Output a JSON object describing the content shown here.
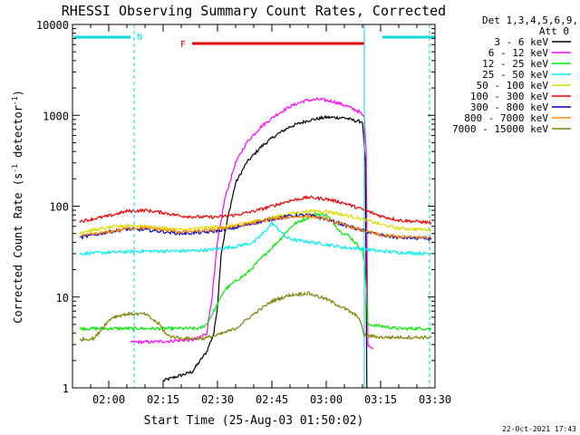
{
  "chart_data": {
    "type": "line",
    "title": "RHESSI Observing Summary Count Rates, Corrected",
    "xlabel": "Start Time (25-Aug-03 01:50:02)",
    "ylabel_main": "Corrected Count Rate (s",
    "ylabel_sup1": "-1",
    "ylabel_mid": " detector",
    "ylabel_sup2": "-1",
    "ylabel_end": ")",
    "yscale": "log",
    "ylim": [
      1,
      10000
    ],
    "xlim_min": [
      110,
      210
    ],
    "yticks": [
      {
        "v": 1,
        "label": "1"
      },
      {
        "v": 10,
        "label": "10"
      },
      {
        "v": 100,
        "label": "100"
      },
      {
        "v": 1000,
        "label": "1000"
      },
      {
        "v": 10000,
        "label": "10000"
      }
    ],
    "xticks": [
      {
        "t": 120,
        "label": "02:00"
      },
      {
        "t": 135,
        "label": "02:15"
      },
      {
        "t": 150,
        "label": "02:30"
      },
      {
        "t": 165,
        "label": "02:45"
      },
      {
        "t": 180,
        "label": "03:00"
      },
      {
        "t": 195,
        "label": "03:15"
      },
      {
        "t": 210,
        "label": "03:30"
      }
    ],
    "legend_header": [
      "Det 1,3,4,5,6,9,",
      "Att 0"
    ],
    "series": [
      {
        "name": "3 - 6 keV",
        "color": "#000000",
        "points": [
          [
            135,
            1.2
          ],
          [
            143,
            1.5
          ],
          [
            147,
            2.5
          ],
          [
            149,
            4
          ],
          [
            150,
            8
          ],
          [
            151,
            30
          ],
          [
            153,
            80
          ],
          [
            155,
            180
          ],
          [
            158,
            300
          ],
          [
            162,
            450
          ],
          [
            166,
            600
          ],
          [
            170,
            750
          ],
          [
            175,
            880
          ],
          [
            180,
            950
          ],
          [
            185,
            940
          ],
          [
            188,
            870
          ],
          [
            190,
            850
          ],
          [
            190.8,
            300
          ],
          [
            191.2,
            1
          ]
        ]
      },
      {
        "name": "6 - 12 keV",
        "color": "#ff00ff",
        "points": [
          [
            126,
            3.2
          ],
          [
            132,
            3.2
          ],
          [
            138,
            3.3
          ],
          [
            144,
            3.4
          ],
          [
            147,
            4
          ],
          [
            148.5,
            10
          ],
          [
            150,
            40
          ],
          [
            152,
            120
          ],
          [
            155,
            300
          ],
          [
            158,
            500
          ],
          [
            162,
            750
          ],
          [
            166,
            1000
          ],
          [
            170,
            1250
          ],
          [
            174,
            1450
          ],
          [
            178,
            1500
          ],
          [
            182,
            1420
          ],
          [
            186,
            1250
          ],
          [
            189,
            1100
          ],
          [
            190.5,
            950
          ],
          [
            191,
            400
          ],
          [
            191.5,
            3
          ],
          [
            193,
            2.7
          ]
        ]
      },
      {
        "name": "12 - 25 keV",
        "color": "#00ee00",
        "points": [
          [
            112,
            4.5
          ],
          [
            120,
            4.5
          ],
          [
            130,
            4.5
          ],
          [
            145,
            4.5
          ],
          [
            147,
            5
          ],
          [
            149,
            7
          ],
          [
            152,
            12
          ],
          [
            155,
            15
          ],
          [
            158,
            18
          ],
          [
            161,
            24
          ],
          [
            164,
            32
          ],
          [
            167,
            42
          ],
          [
            169,
            52
          ],
          [
            171,
            63
          ],
          [
            174,
            72
          ],
          [
            177,
            82
          ],
          [
            180,
            80
          ],
          [
            182,
            66
          ],
          [
            184,
            52
          ],
          [
            186,
            48
          ],
          [
            188,
            40
          ],
          [
            190,
            32
          ],
          [
            190.5,
            25
          ],
          [
            191,
            12
          ],
          [
            191.5,
            5
          ],
          [
            200,
            4.5
          ],
          [
            209,
            4.5
          ]
        ]
      },
      {
        "name": "25 - 50 keV",
        "color": "#00eeee",
        "points": [
          [
            112,
            30
          ],
          [
            120,
            31
          ],
          [
            130,
            32
          ],
          [
            140,
            32
          ],
          [
            148,
            33
          ],
          [
            155,
            36
          ],
          [
            160,
            40
          ],
          [
            163,
            52
          ],
          [
            165,
            65
          ],
          [
            167,
            55
          ],
          [
            169,
            45
          ],
          [
            172,
            42
          ],
          [
            176,
            40
          ],
          [
            180,
            38
          ],
          [
            185,
            35
          ],
          [
            190,
            34
          ],
          [
            195,
            32
          ],
          [
            200,
            31
          ],
          [
            209,
            30
          ]
        ]
      },
      {
        "name": "50 - 100 keV",
        "color": "#dddd00",
        "points": [
          [
            112,
            52
          ],
          [
            120,
            58
          ],
          [
            125,
            62
          ],
          [
            130,
            60
          ],
          [
            140,
            55
          ],
          [
            148,
            58
          ],
          [
            155,
            62
          ],
          [
            160,
            68
          ],
          [
            165,
            75
          ],
          [
            170,
            82
          ],
          [
            175,
            88
          ],
          [
            180,
            88
          ],
          [
            185,
            80
          ],
          [
            190,
            72
          ],
          [
            195,
            63
          ],
          [
            200,
            57
          ],
          [
            209,
            55
          ]
        ]
      },
      {
        "name": "100 - 300 keV",
        "color": "#ee0000",
        "points": [
          [
            112,
            68
          ],
          [
            120,
            78
          ],
          [
            125,
            88
          ],
          [
            130,
            90
          ],
          [
            135,
            85
          ],
          [
            140,
            78
          ],
          [
            145,
            76
          ],
          [
            150,
            76
          ],
          [
            155,
            80
          ],
          [
            160,
            88
          ],
          [
            165,
            100
          ],
          [
            170,
            115
          ],
          [
            175,
            125
          ],
          [
            180,
            120
          ],
          [
            185,
            108
          ],
          [
            190,
            92
          ],
          [
            195,
            78
          ],
          [
            200,
            70
          ],
          [
            209,
            66
          ]
        ]
      },
      {
        "name": "300 - 800 keV",
        "color": "#0000cc",
        "points": [
          [
            112,
            45
          ],
          [
            120,
            52
          ],
          [
            125,
            56
          ],
          [
            130,
            55
          ],
          [
            140,
            50
          ],
          [
            148,
            52
          ],
          [
            155,
            58
          ],
          [
            160,
            65
          ],
          [
            165,
            72
          ],
          [
            170,
            78
          ],
          [
            175,
            80
          ],
          [
            180,
            72
          ],
          [
            185,
            62
          ],
          [
            190,
            54
          ],
          [
            195,
            48
          ],
          [
            200,
            45
          ],
          [
            209,
            44
          ]
        ]
      },
      {
        "name": "800 - 7000 keV",
        "color": "#ff8800",
        "points": [
          [
            112,
            47
          ],
          [
            120,
            52
          ],
          [
            125,
            57
          ],
          [
            130,
            58
          ],
          [
            140,
            52
          ],
          [
            148,
            54
          ],
          [
            155,
            60
          ],
          [
            160,
            66
          ],
          [
            165,
            72
          ],
          [
            170,
            76
          ],
          [
            175,
            78
          ],
          [
            180,
            72
          ],
          [
            185,
            62
          ],
          [
            190,
            54
          ],
          [
            195,
            48
          ],
          [
            200,
            46
          ],
          [
            209,
            45
          ]
        ]
      },
      {
        "name": "7000 - 15000 keV",
        "color": "#808000",
        "points": [
          [
            112,
            3.4
          ],
          [
            116,
            3.5
          ],
          [
            119,
            5
          ],
          [
            121,
            6
          ],
          [
            125,
            6.5
          ],
          [
            130,
            6.5
          ],
          [
            134,
            5
          ],
          [
            136,
            3.8
          ],
          [
            140,
            3.5
          ],
          [
            146,
            3.5
          ],
          [
            150,
            3.8
          ],
          [
            155,
            4.5
          ],
          [
            160,
            6.5
          ],
          [
            165,
            9
          ],
          [
            170,
            10.5
          ],
          [
            175,
            11
          ],
          [
            180,
            9.5
          ],
          [
            185,
            7.5
          ],
          [
            189,
            6
          ],
          [
            190.5,
            3.8
          ],
          [
            195,
            3.6
          ],
          [
            200,
            3.6
          ],
          [
            209,
            3.6
          ]
        ]
      }
    ],
    "annotations": [
      {
        "name": "night",
        "label": "N",
        "color": "#00dddd",
        "t_start": 110,
        "t_end": 127,
        "t_end2_start": 195,
        "t_end2_end": 210
      },
      {
        "name": "flare",
        "label": "F",
        "color": "#dd0000",
        "t_start": 143,
        "t_end": 190
      }
    ],
    "vlines": [
      {
        "t": 110,
        "style": "solid"
      },
      {
        "t": 127,
        "style": "dashed"
      },
      {
        "t": 190.5,
        "style": "solid"
      },
      {
        "t": 208.5,
        "style": "dashed"
      }
    ],
    "footer_date": "22-Oct-2021 17:43"
  }
}
